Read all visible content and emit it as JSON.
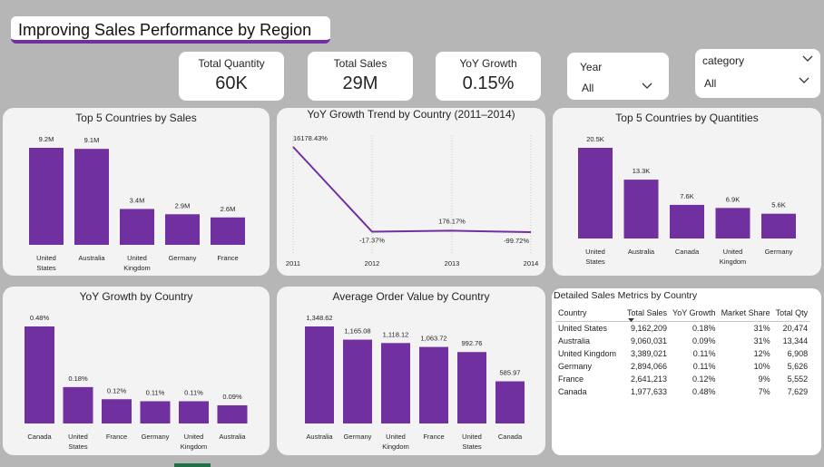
{
  "page_title": "Improving Sales Performance by Region",
  "kpis": [
    {
      "label": "Total Quantity",
      "value": "60K"
    },
    {
      "label": "Total Sales",
      "value": "29M"
    },
    {
      "label": "YoY Growth",
      "value": "0.15%"
    }
  ],
  "slicers": {
    "year": {
      "label": "Year",
      "value": "All"
    },
    "category": {
      "label": "category",
      "value": "All"
    }
  },
  "colors": {
    "bar": "#7030a0",
    "line": "#7030a0",
    "card": "#f3f3f3",
    "background": "#b6b6b6"
  },
  "chart_data": [
    {
      "type": "bar",
      "title": "Top 5 Countries by Sales",
      "categories": [
        "United States",
        "Australia",
        "United Kingdom",
        "Germany",
        "France"
      ],
      "values": [
        9.2,
        9.1,
        3.4,
        2.9,
        2.6
      ],
      "labels": [
        "9.2M",
        "9.1M",
        "3.4M",
        "2.9M",
        "2.6M"
      ]
    },
    {
      "type": "line",
      "title": "YoY Growth Trend by Country (2011–2014)",
      "x": [
        "2011",
        "2012",
        "2013",
        "2014"
      ],
      "values": [
        16178.43,
        -17.37,
        176.17,
        -99.72
      ],
      "labels": [
        "16178.43%",
        "-17.37%",
        "176.17%",
        "-99.72%"
      ]
    },
    {
      "type": "bar",
      "title": "Top 5 Countries by Quantities",
      "categories": [
        "United States",
        "Australia",
        "Canada",
        "United Kingdom",
        "Germany"
      ],
      "values": [
        20.5,
        13.3,
        7.6,
        6.9,
        5.6
      ],
      "labels": [
        "20.5K",
        "13.3K",
        "7.6K",
        "6.9K",
        "5.6K"
      ]
    },
    {
      "type": "bar",
      "title": "YoY Growth by Country",
      "categories": [
        "Canada",
        "United States",
        "France",
        "Germany",
        "United Kingdom",
        "Australia"
      ],
      "values": [
        0.48,
        0.18,
        0.12,
        0.11,
        0.11,
        0.09
      ],
      "labels": [
        "0.48%",
        "0.18%",
        "0.12%",
        "0.11%",
        "0.11%",
        "0.09%"
      ]
    },
    {
      "type": "bar",
      "title": "Average Order Value by Country",
      "categories": [
        "Australia",
        "Germany",
        "United Kingdom",
        "France",
        "United States",
        "Canada"
      ],
      "values": [
        1348.62,
        1165.08,
        1118.12,
        1063.72,
        992.76,
        585.97
      ],
      "labels": [
        "1,348.62",
        "1,165.08",
        "1,118.12",
        "1,063.72",
        "992.76",
        "585.97"
      ]
    },
    {
      "type": "table",
      "title": "Detailed Sales Metrics by Country",
      "columns": [
        "Country",
        "Total Sales",
        "YoY Growth",
        "Market Share",
        "Total Qty"
      ],
      "rows": [
        [
          "United States",
          "9,162,209",
          "0.18%",
          "31%",
          "20,474"
        ],
        [
          "Australia",
          "9,060,031",
          "0.09%",
          "31%",
          "13,344"
        ],
        [
          "United Kingdom",
          "3,389,021",
          "0.11%",
          "12%",
          "6,908"
        ],
        [
          "Germany",
          "2,894,066",
          "0.11%",
          "10%",
          "5,626"
        ],
        [
          "France",
          "2,641,213",
          "0.12%",
          "9%",
          "5,552"
        ],
        [
          "Canada",
          "1,977,633",
          "0.48%",
          "7%",
          "7,629"
        ]
      ]
    }
  ]
}
